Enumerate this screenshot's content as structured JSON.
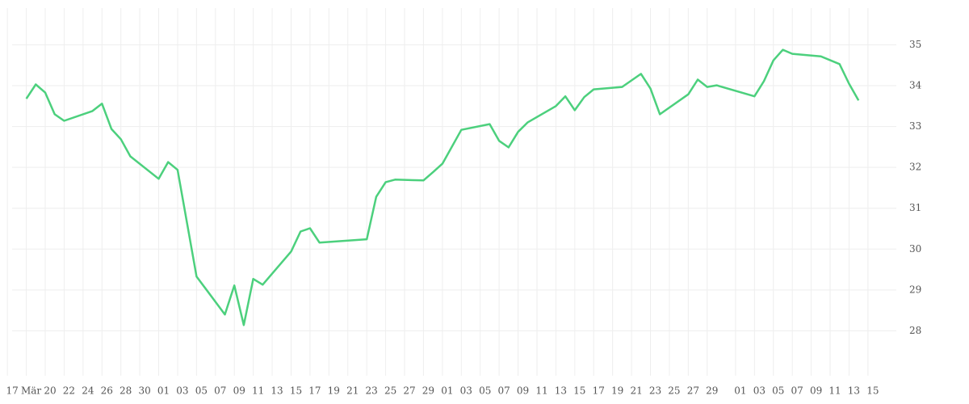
{
  "chart_data": {
    "type": "line",
    "x": [
      18,
      19,
      20,
      21,
      22,
      25,
      26,
      27,
      28,
      29,
      32,
      33,
      34,
      36,
      39,
      40,
      41,
      42,
      43,
      46,
      47,
      48,
      49,
      54,
      55,
      56,
      57,
      60,
      61,
      62,
      64,
      67,
      68,
      69,
      70,
      71,
      74,
      75,
      76,
      77,
      78,
      81,
      82,
      83,
      84,
      85,
      88,
      89,
      90,
      91,
      95,
      96,
      97,
      98,
      99,
      102,
      104,
      105,
      106
    ],
    "series": [
      {
        "color": "#4cd07d",
        "values": [
          33.68,
          34.03,
          33.83,
          33.3,
          33.14,
          33.38,
          33.56,
          32.94,
          32.69,
          32.27,
          31.72,
          32.13,
          31.94,
          29.33,
          28.4,
          29.11,
          28.14,
          29.27,
          29.13,
          29.94,
          30.43,
          30.51,
          30.16,
          30.24,
          31.28,
          31.64,
          31.7,
          31.68,
          31.88,
          32.09,
          32.92,
          33.06,
          32.65,
          32.49,
          32.87,
          33.1,
          33.5,
          33.74,
          33.4,
          33.72,
          33.91,
          33.97,
          34.13,
          34.29,
          33.93,
          33.3,
          33.79,
          34.15,
          33.97,
          34.01,
          33.74,
          34.11,
          34.62,
          34.88,
          34.78,
          34.72,
          34.53,
          34.05,
          33.64
        ]
      }
    ],
    "xlim": [
      16.5,
      110
    ],
    "xticks": [
      {
        "value": 16,
        "label": "17"
      },
      {
        "value": 18,
        "label": "Mär"
      },
      {
        "value": 20,
        "label": "20"
      },
      {
        "value": 22,
        "label": "22"
      },
      {
        "value": 24,
        "label": "24"
      },
      {
        "value": 26,
        "label": "26"
      },
      {
        "value": 28,
        "label": "28"
      },
      {
        "value": 30,
        "label": "30"
      },
      {
        "value": 32,
        "label": "01"
      },
      {
        "value": 34,
        "label": "03"
      },
      {
        "value": 36,
        "label": "05"
      },
      {
        "value": 38,
        "label": "07"
      },
      {
        "value": 40,
        "label": "09"
      },
      {
        "value": 42,
        "label": "11"
      },
      {
        "value": 44,
        "label": "13"
      },
      {
        "value": 46,
        "label": "15"
      },
      {
        "value": 48,
        "label": "17"
      },
      {
        "value": 50,
        "label": "19"
      },
      {
        "value": 52,
        "label": "21"
      },
      {
        "value": 54,
        "label": "23"
      },
      {
        "value": 56,
        "label": "25"
      },
      {
        "value": 58,
        "label": "27"
      },
      {
        "value": 60,
        "label": "29"
      },
      {
        "value": 62,
        "label": "01"
      },
      {
        "value": 64,
        "label": "03"
      },
      {
        "value": 66,
        "label": "05"
      },
      {
        "value": 68,
        "label": "07"
      },
      {
        "value": 70,
        "label": "09"
      },
      {
        "value": 72,
        "label": "11"
      },
      {
        "value": 74,
        "label": "13"
      },
      {
        "value": 76,
        "label": "15"
      },
      {
        "value": 78,
        "label": "17"
      },
      {
        "value": 80,
        "label": "19"
      },
      {
        "value": 82,
        "label": "21"
      },
      {
        "value": 84,
        "label": "23"
      },
      {
        "value": 86,
        "label": "25"
      },
      {
        "value": 88,
        "label": "27"
      },
      {
        "value": 90,
        "label": "29"
      },
      {
        "value": 93,
        "label": "01"
      },
      {
        "value": 95,
        "label": "03"
      },
      {
        "value": 97,
        "label": "05"
      },
      {
        "value": 99,
        "label": "07"
      },
      {
        "value": 101,
        "label": "09"
      },
      {
        "value": 103,
        "label": "11"
      },
      {
        "value": 105,
        "label": "13"
      },
      {
        "value": 107,
        "label": "15"
      }
    ],
    "ylim": [
      26.9,
      35.9
    ],
    "yticks": [
      28,
      29,
      30,
      31,
      32,
      33,
      34,
      35
    ],
    "grid": true
  }
}
